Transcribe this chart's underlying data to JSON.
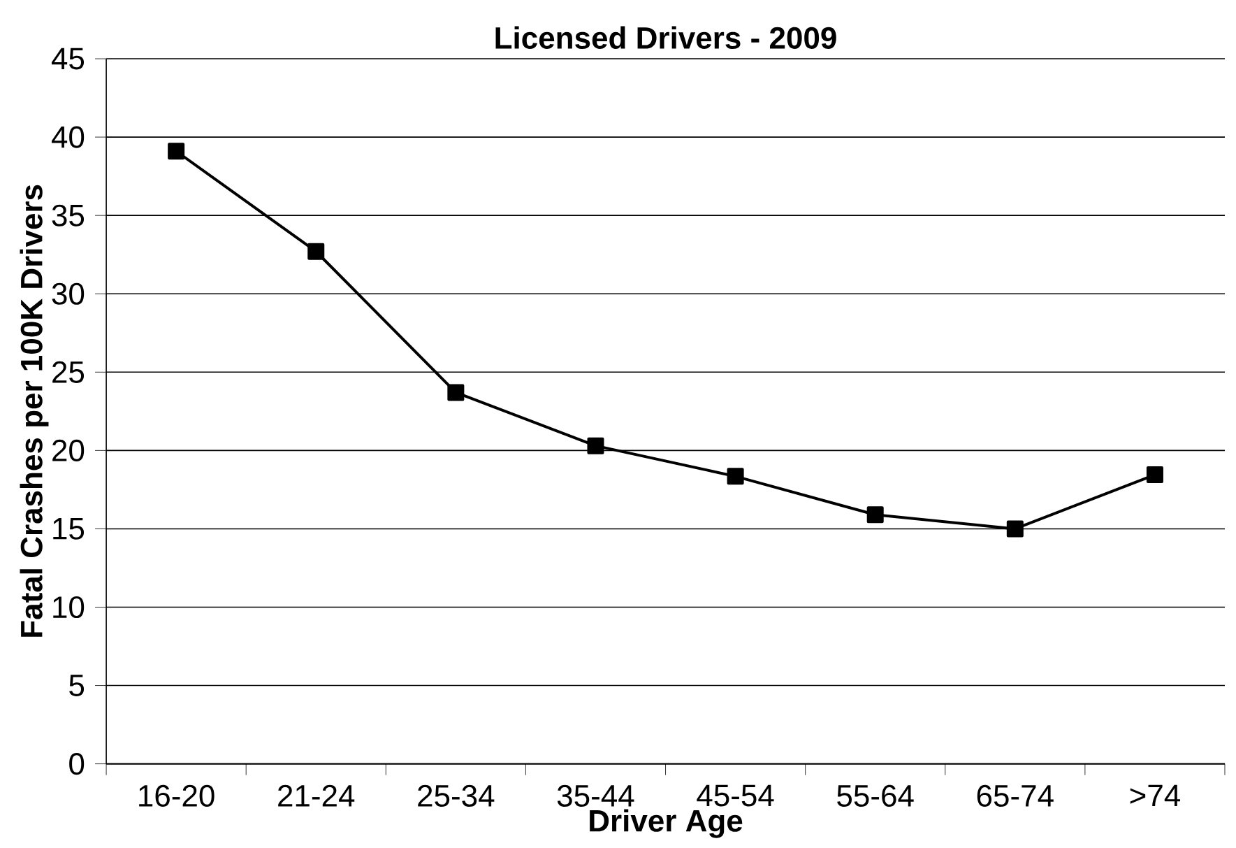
{
  "chart_data": {
    "type": "line",
    "title": "Licensed Drivers - 2009",
    "xlabel": "Driver Age",
    "ylabel": "Fatal Crashes per 100K Drivers",
    "categories": [
      "16-20",
      "21-24",
      "25-34",
      "35-44",
      "45-54",
      "55-64",
      "65-74",
      ">74"
    ],
    "series": [
      {
        "color": "#000000",
        "values": [
          39.1,
          32.7,
          23.7,
          20.3,
          18.35,
          15.9,
          15.0,
          18.45
        ]
      }
    ],
    "ylim": [
      0,
      45
    ],
    "yticks": [
      0,
      5,
      10,
      15,
      20,
      25,
      30,
      35,
      40,
      45
    ],
    "grid": "y",
    "marker": "square",
    "line_style": "solid"
  }
}
